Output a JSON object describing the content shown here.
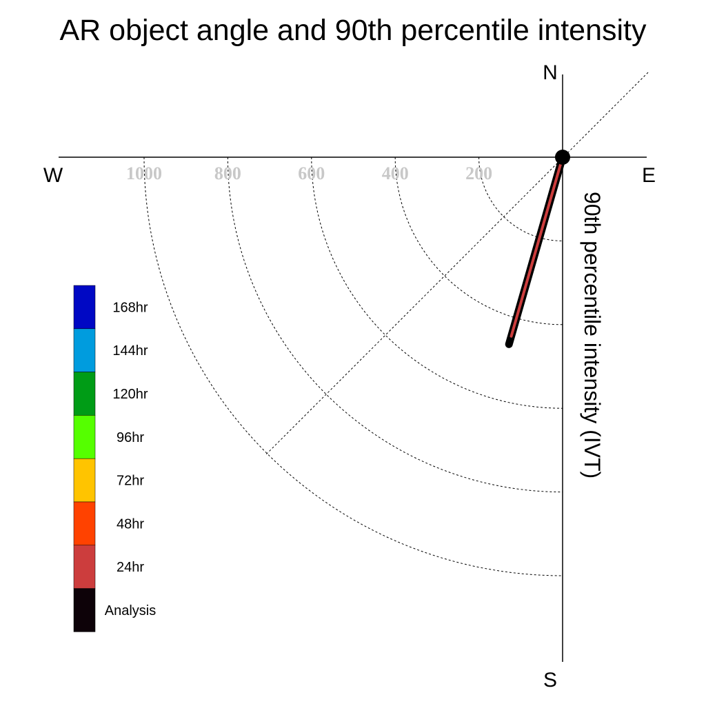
{
  "chart_data": {
    "type": "polar-quadrant",
    "title": "AR object angle and 90th percentile intensity",
    "radial_label": "90th percentile intensity (IVT)",
    "compass": {
      "north": "N",
      "south": "S",
      "east": "E",
      "west": "W"
    },
    "radial_ticks": [
      1000,
      800,
      600,
      400,
      200
    ],
    "radial_tick_labels": [
      "1000",
      "800",
      "600",
      "400",
      "200"
    ],
    "radial_range": [
      0,
      1000
    ],
    "grid": true,
    "legend_placement": "left",
    "legend": [
      {
        "label": "168hr",
        "color": "#0008c4"
      },
      {
        "label": "144hr",
        "color": "#009cde"
      },
      {
        "label": "120hr",
        "color": "#009c16"
      },
      {
        "label": "96hr",
        "color": "#55ff00"
      },
      {
        "label": "72hr",
        "color": "#ffc400"
      },
      {
        "label": "48hr",
        "color": "#ff4200"
      },
      {
        "label": "24hr",
        "color": "#cc3d3d"
      },
      {
        "label": "Analysis",
        "color": "#0d0208"
      }
    ],
    "series": [
      {
        "name": "Analysis",
        "color": "#000000",
        "angle_deg": 196,
        "intensity": 465
      },
      {
        "name": "24hr",
        "color": "#cc3d3d",
        "angle_deg": 196,
        "intensity": 445
      }
    ]
  }
}
